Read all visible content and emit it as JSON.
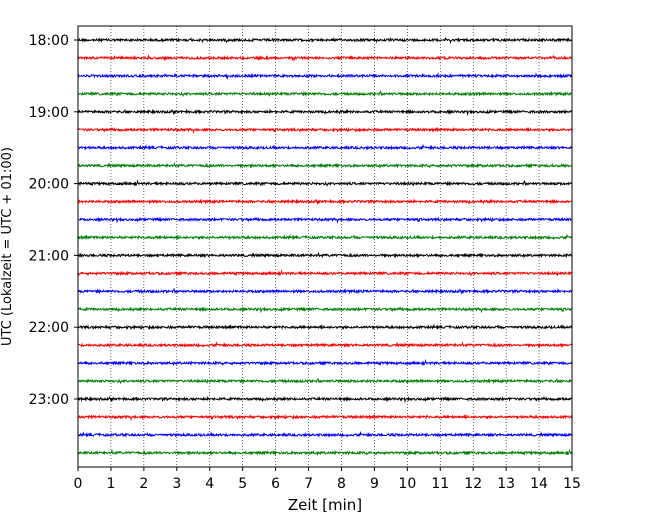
{
  "chart_data": {
    "type": "line",
    "description_kind": "helicorder",
    "xlabel": "Zeit  [min]",
    "ylabel": "UTC (Lokalzeit = UTC + 01:00)",
    "xlim": [
      0,
      15
    ],
    "x_ticks": [
      "0",
      "1",
      "2",
      "3",
      "4",
      "5",
      "6",
      "7",
      "8",
      "9",
      "10",
      "11",
      "12",
      "13",
      "14",
      "15"
    ],
    "y_tick_labels": [
      "18:00",
      "19:00",
      "20:00",
      "21:00",
      "22:00",
      "23:00"
    ],
    "traces_per_hour": 4,
    "trace_count": 24,
    "trace_colors": [
      "#000000",
      "#ff0000",
      "#0000ff",
      "#008000"
    ],
    "grid": "vertical dotted",
    "series": [
      {
        "start": "18:00",
        "color": "#000000"
      },
      {
        "start": "18:15",
        "color": "#ff0000"
      },
      {
        "start": "18:30",
        "color": "#0000ff"
      },
      {
        "start": "18:45",
        "color": "#008000"
      },
      {
        "start": "19:00",
        "color": "#000000"
      },
      {
        "start": "19:15",
        "color": "#ff0000"
      },
      {
        "start": "19:30",
        "color": "#0000ff"
      },
      {
        "start": "19:45",
        "color": "#008000"
      },
      {
        "start": "20:00",
        "color": "#000000"
      },
      {
        "start": "20:15",
        "color": "#ff0000"
      },
      {
        "start": "20:30",
        "color": "#0000ff"
      },
      {
        "start": "20:45",
        "color": "#008000"
      },
      {
        "start": "21:00",
        "color": "#000000"
      },
      {
        "start": "21:15",
        "color": "#ff0000"
      },
      {
        "start": "21:30",
        "color": "#0000ff"
      },
      {
        "start": "21:45",
        "color": "#008000"
      },
      {
        "start": "22:00",
        "color": "#000000"
      },
      {
        "start": "22:15",
        "color": "#ff0000"
      },
      {
        "start": "22:30",
        "color": "#0000ff"
      },
      {
        "start": "22:45",
        "color": "#008000"
      },
      {
        "start": "23:00",
        "color": "#000000"
      },
      {
        "start": "23:15",
        "color": "#ff0000"
      },
      {
        "start": "23:30",
        "color": "#0000ff"
      },
      {
        "start": "23:45",
        "color": "#008000"
      }
    ]
  }
}
